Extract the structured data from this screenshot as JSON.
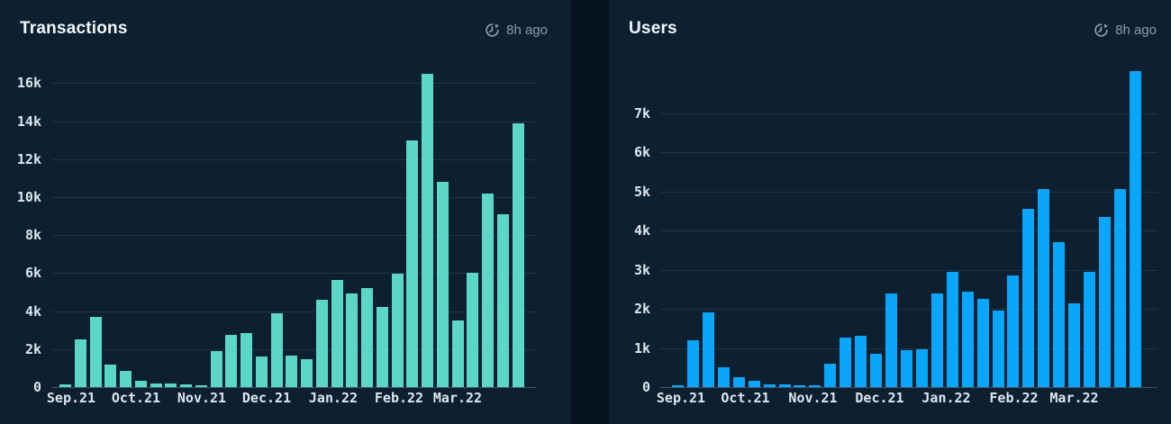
{
  "chart_data": [
    {
      "type": "bar",
      "title": "Transactions",
      "updated": "8h ago",
      "updated_icon": "history-clock-icon",
      "bar_color": "#5cd6c7",
      "x_tick_labels": [
        "Sep.21",
        "Oct.21",
        "Nov.21",
        "Dec.21",
        "Jan.22",
        "Feb.22",
        "Mar.22"
      ],
      "y_ticks": [
        {
          "label": "0",
          "value": 0
        },
        {
          "label": "2k",
          "value": 2000
        },
        {
          "label": "4k",
          "value": 4000
        },
        {
          "label": "6k",
          "value": 6000
        },
        {
          "label": "8k",
          "value": 8000
        },
        {
          "label": "10k",
          "value": 10000
        },
        {
          "label": "12k",
          "value": 12000
        },
        {
          "label": "14k",
          "value": 14000
        },
        {
          "label": "16k",
          "value": 16000
        }
      ],
      "values": [
        150,
        2500,
        3700,
        1200,
        850,
        350,
        170,
        180,
        150,
        80,
        1900,
        2750,
        2850,
        1600,
        3900,
        1650,
        1450,
        4600,
        5650,
        4950,
        5200,
        4200,
        5950,
        13000,
        16500,
        10800,
        3500,
        6000,
        10200,
        9100,
        13900
      ],
      "x_interval": "weekly",
      "ylim": [
        0,
        17000
      ],
      "grid": true,
      "legend": false
    },
    {
      "type": "bar",
      "title": "Users",
      "updated": "8h ago",
      "updated_icon": "history-clock-icon",
      "bar_color": "#0aa6fb",
      "x_tick_labels": [
        "Sep.21",
        "Oct.21",
        "Nov.21",
        "Dec.21",
        "Jan.22",
        "Feb.22",
        "Mar.22"
      ],
      "y_ticks": [
        {
          "label": "0",
          "value": 0
        },
        {
          "label": "1k",
          "value": 1000
        },
        {
          "label": "2k",
          "value": 2000
        },
        {
          "label": "3k",
          "value": 3000
        },
        {
          "label": "4k",
          "value": 4000
        },
        {
          "label": "5k",
          "value": 5000
        },
        {
          "label": "6k",
          "value": 6000
        },
        {
          "label": "7k",
          "value": 7000
        }
      ],
      "values": [
        40,
        1200,
        1900,
        500,
        250,
        150,
        60,
        70,
        40,
        50,
        600,
        1270,
        1300,
        860,
        2380,
        950,
        970,
        2400,
        2950,
        2440,
        2260,
        1950,
        2860,
        4550,
        5050,
        3700,
        2130,
        2950,
        4350,
        5050,
        8070
      ],
      "x_interval": "weekly",
      "ylim": [
        0,
        8300
      ],
      "grid": true,
      "legend": false
    }
  ],
  "colors": {
    "page_background": "#071320",
    "card_background": "#0c2030",
    "transactions_bar": "#5cd6c7",
    "users_bar": "#0aa6fb",
    "axis_label": "#dde6ee",
    "timestamp": "#8d9dab",
    "title": "#f2f6f9"
  }
}
